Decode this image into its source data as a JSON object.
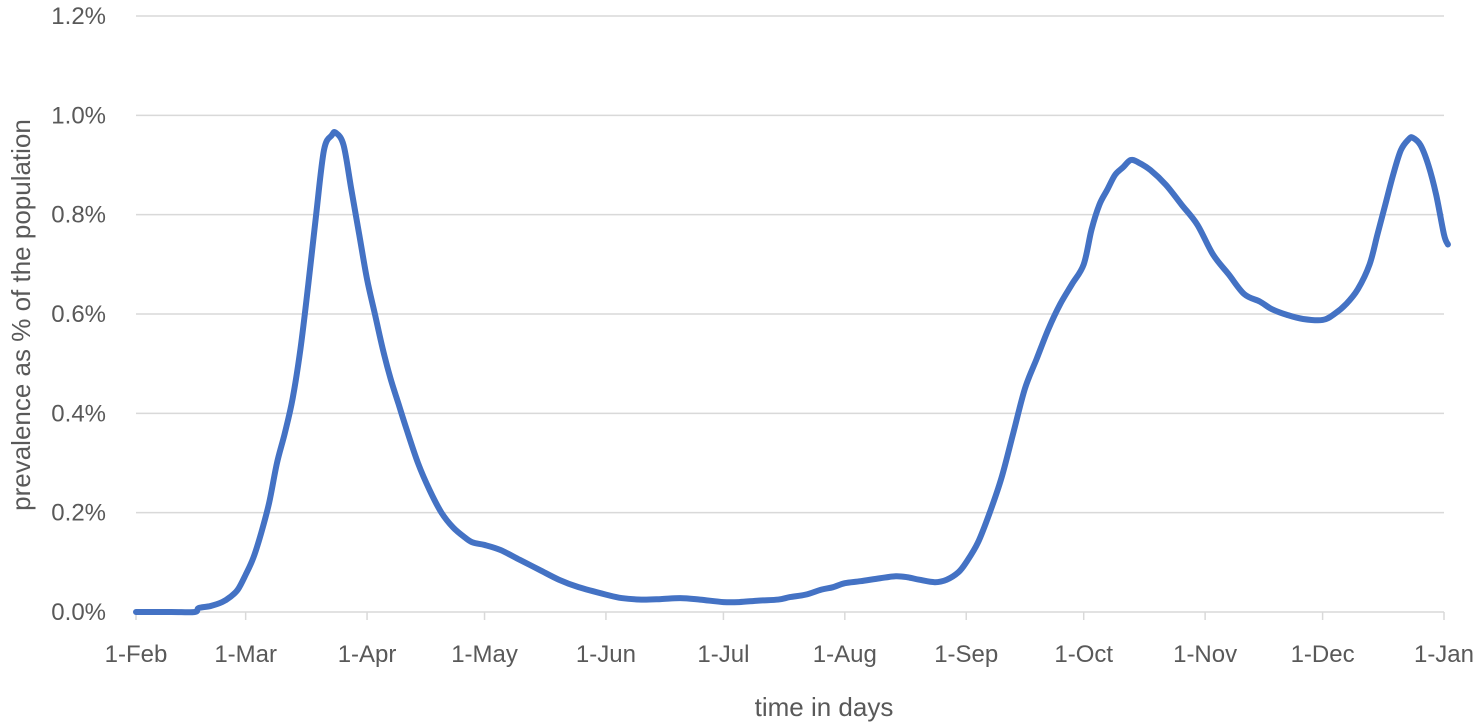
{
  "chart_data": {
    "type": "line",
    "title": "",
    "xlabel": "time in days",
    "ylabel": "prevalence as % of the population",
    "x_tick_labels": [
      "1-Feb",
      "1-Mar",
      "1-Apr",
      "1-May",
      "1-Jun",
      "1-Jul",
      "1-Aug",
      "1-Sep",
      "1-Oct",
      "1-Nov",
      "1-Dec",
      "1-Jan"
    ],
    "x_tick_dates": [
      "02-01",
      "03-01",
      "04-01",
      "05-01",
      "06-01",
      "07-01",
      "08-01",
      "09-01",
      "10-01",
      "11-01",
      "12-01",
      "01-01"
    ],
    "y_tick_labels": [
      "0.0%",
      "0.2%",
      "0.4%",
      "0.6%",
      "0.8%",
      "1.0%",
      "1.2%"
    ],
    "ylim": [
      0,
      1.2
    ],
    "grid": true,
    "legend": "none",
    "series": [
      {
        "color": "#4472c4",
        "points": [
          [
            "02-01",
            0.0
          ],
          [
            "02-10",
            0.0
          ],
          [
            "02-16",
            0.0
          ],
          [
            "02-17",
            0.008
          ],
          [
            "02-20",
            0.012
          ],
          [
            "02-23",
            0.02
          ],
          [
            "02-25",
            0.03
          ],
          [
            "02-27",
            0.045
          ],
          [
            "03-01",
            0.075
          ],
          [
            "03-03",
            0.11
          ],
          [
            "03-05",
            0.16
          ],
          [
            "03-07",
            0.22
          ],
          [
            "03-09",
            0.3
          ],
          [
            "03-11",
            0.36
          ],
          [
            "03-13",
            0.43
          ],
          [
            "03-15",
            0.53
          ],
          [
            "03-17",
            0.66
          ],
          [
            "03-19",
            0.8
          ],
          [
            "03-21",
            0.93
          ],
          [
            "03-23",
            0.96
          ],
          [
            "03-24",
            0.965
          ],
          [
            "03-26",
            0.94
          ],
          [
            "03-28",
            0.85
          ],
          [
            "03-30",
            0.76
          ],
          [
            "04-01",
            0.67
          ],
          [
            "04-03",
            0.6
          ],
          [
            "04-05",
            0.53
          ],
          [
            "04-07",
            0.47
          ],
          [
            "04-09",
            0.42
          ],
          [
            "04-11",
            0.37
          ],
          [
            "04-14",
            0.3
          ],
          [
            "04-17",
            0.245
          ],
          [
            "04-20",
            0.2
          ],
          [
            "04-23",
            0.17
          ],
          [
            "04-26",
            0.15
          ],
          [
            "04-28",
            0.14
          ],
          [
            "05-01",
            0.135
          ],
          [
            "05-05",
            0.125
          ],
          [
            "05-10",
            0.105
          ],
          [
            "05-15",
            0.085
          ],
          [
            "05-20",
            0.065
          ],
          [
            "05-25",
            0.05
          ],
          [
            "06-01",
            0.035
          ],
          [
            "06-05",
            0.028
          ],
          [
            "06-10",
            0.025
          ],
          [
            "06-15",
            0.026
          ],
          [
            "06-20",
            0.028
          ],
          [
            "06-25",
            0.025
          ],
          [
            "07-01",
            0.02
          ],
          [
            "07-05",
            0.02
          ],
          [
            "07-10",
            0.023
          ],
          [
            "07-15",
            0.025
          ],
          [
            "07-18",
            0.03
          ],
          [
            "07-22",
            0.035
          ],
          [
            "07-26",
            0.045
          ],
          [
            "07-29",
            0.05
          ],
          [
            "08-01",
            0.058
          ],
          [
            "08-05",
            0.062
          ],
          [
            "08-10",
            0.068
          ],
          [
            "08-14",
            0.072
          ],
          [
            "08-17",
            0.07
          ],
          [
            "08-20",
            0.065
          ],
          [
            "08-24",
            0.06
          ],
          [
            "08-27",
            0.065
          ],
          [
            "08-30",
            0.08
          ],
          [
            "09-01",
            0.1
          ],
          [
            "09-04",
            0.14
          ],
          [
            "09-07",
            0.2
          ],
          [
            "09-10",
            0.27
          ],
          [
            "09-13",
            0.36
          ],
          [
            "09-16",
            0.45
          ],
          [
            "09-19",
            0.51
          ],
          [
            "09-22",
            0.57
          ],
          [
            "09-25",
            0.62
          ],
          [
            "09-28",
            0.66
          ],
          [
            "10-01",
            0.7
          ],
          [
            "10-03",
            0.77
          ],
          [
            "10-05",
            0.82
          ],
          [
            "10-07",
            0.85
          ],
          [
            "10-09",
            0.88
          ],
          [
            "10-11",
            0.895
          ],
          [
            "10-13",
            0.91
          ],
          [
            "10-15",
            0.905
          ],
          [
            "10-18",
            0.89
          ],
          [
            "10-22",
            0.86
          ],
          [
            "10-26",
            0.82
          ],
          [
            "10-30",
            0.78
          ],
          [
            "11-03",
            0.72
          ],
          [
            "11-07",
            0.68
          ],
          [
            "11-11",
            0.64
          ],
          [
            "11-15",
            0.625
          ],
          [
            "11-18",
            0.61
          ],
          [
            "11-22",
            0.598
          ],
          [
            "11-26",
            0.59
          ],
          [
            "12-01",
            0.588
          ],
          [
            "12-04",
            0.6
          ],
          [
            "12-07",
            0.62
          ],
          [
            "12-10",
            0.65
          ],
          [
            "12-13",
            0.7
          ],
          [
            "12-15",
            0.76
          ],
          [
            "12-17",
            0.82
          ],
          [
            "12-19",
            0.88
          ],
          [
            "12-21",
            0.93
          ],
          [
            "12-23",
            0.952
          ],
          [
            "12-24",
            0.955
          ],
          [
            "12-26",
            0.94
          ],
          [
            "12-28",
            0.9
          ],
          [
            "12-30",
            0.84
          ],
          [
            "01-01",
            0.76
          ],
          [
            "01-02",
            0.74
          ]
        ]
      }
    ]
  }
}
